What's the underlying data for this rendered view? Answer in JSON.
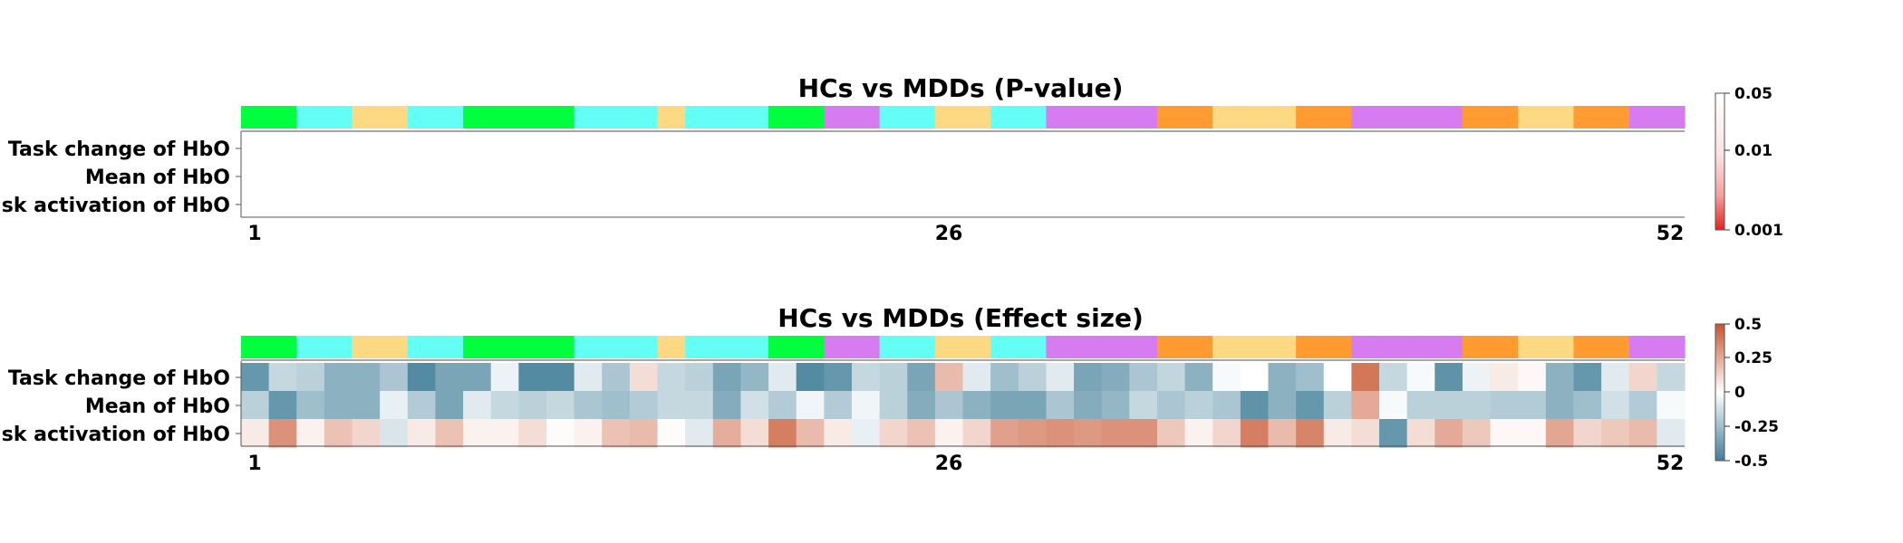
{
  "colors": {
    "green": "#00ff3c",
    "cyan": "#63fff5",
    "yellow": "#fed983",
    "purple": "#d67bf0",
    "orange": "#ff9b30",
    "diverging_low": "#3f7e98",
    "diverging_mid": "#ffffff",
    "diverging_high": "#c8552f",
    "pvalue_low": "#e8201c",
    "pvalue_high": "#ffffff"
  },
  "chart_data": [
    {
      "type": "heatmap",
      "title": "HCs vs MDDs (P-value)",
      "rows": [
        "Task change of HbO",
        "Mean of HbO",
        "Task activation of HbO"
      ],
      "x_ticks": [
        "1",
        "26",
        "52"
      ],
      "region_bar": [
        "green",
        "green",
        "cyan",
        "cyan",
        "yellow",
        "yellow",
        "cyan",
        "cyan",
        "green",
        "green",
        "green",
        "green",
        "cyan",
        "cyan",
        "cyan",
        "yellow",
        "cyan",
        "cyan",
        "cyan",
        "green",
        "green",
        "purple",
        "purple",
        "cyan",
        "cyan",
        "yellow",
        "yellow",
        "cyan",
        "cyan",
        "purple",
        "purple",
        "purple",
        "purple",
        "orange",
        "orange",
        "yellow",
        "yellow",
        "yellow",
        "orange",
        "orange",
        "purple",
        "purple",
        "purple",
        "purple",
        "orange",
        "orange",
        "yellow",
        "yellow",
        "orange",
        "orange",
        "purple",
        "purple"
      ],
      "colorbar": {
        "ticks": [
          "0.05",
          "0.01",
          "0.001"
        ],
        "scale": "log",
        "range": [
          0.001,
          0.05
        ]
      },
      "values": [],
      "note_visible": ""
    },
    {
      "type": "heatmap",
      "title": "HCs vs MDDs (Effect size)",
      "rows": [
        "Task change of HbO",
        "Mean of HbO",
        "Task activation of HbO"
      ],
      "x_ticks": [
        "1",
        "26",
        "52"
      ],
      "region_bar": [
        "green",
        "green",
        "cyan",
        "cyan",
        "yellow",
        "yellow",
        "cyan",
        "cyan",
        "green",
        "green",
        "green",
        "green",
        "cyan",
        "cyan",
        "cyan",
        "yellow",
        "cyan",
        "cyan",
        "cyan",
        "green",
        "green",
        "purple",
        "purple",
        "cyan",
        "cyan",
        "yellow",
        "yellow",
        "cyan",
        "cyan",
        "purple",
        "purple",
        "purple",
        "purple",
        "orange",
        "orange",
        "yellow",
        "yellow",
        "yellow",
        "orange",
        "orange",
        "purple",
        "purple",
        "purple",
        "purple",
        "orange",
        "orange",
        "yellow",
        "yellow",
        "orange",
        "orange",
        "purple",
        "purple"
      ],
      "colorbar": {
        "ticks": [
          "0.5",
          "0.25",
          "0",
          "-0.25",
          "-0.5"
        ],
        "range": [
          -0.5,
          0.5
        ]
      },
      "values": [
        [
          -0.4,
          -0.15,
          -0.18,
          -0.3,
          -0.3,
          -0.22,
          -0.45,
          -0.35,
          -0.35,
          -0.05,
          -0.45,
          -0.45,
          -0.08,
          -0.22,
          0.1,
          -0.15,
          -0.18,
          -0.35,
          -0.28,
          -0.08,
          -0.45,
          -0.4,
          -0.15,
          -0.18,
          -0.35,
          0.2,
          -0.08,
          -0.25,
          -0.18,
          -0.08,
          -0.35,
          -0.32,
          -0.22,
          -0.16,
          -0.3,
          -0.02,
          0.0,
          -0.3,
          -0.25,
          0.0,
          0.4,
          -0.15,
          -0.02,
          -0.42,
          -0.05,
          0.06,
          0.02,
          -0.3,
          -0.4,
          -0.08,
          0.12,
          -0.15
        ],
        [
          -0.18,
          -0.4,
          -0.25,
          -0.3,
          -0.3,
          -0.06,
          -0.2,
          -0.35,
          -0.08,
          -0.15,
          -0.18,
          -0.15,
          -0.22,
          -0.25,
          -0.2,
          -0.15,
          -0.15,
          -0.32,
          -0.12,
          -0.2,
          -0.04,
          -0.2,
          -0.04,
          -0.18,
          -0.32,
          -0.22,
          -0.3,
          -0.35,
          -0.35,
          -0.22,
          -0.32,
          -0.28,
          -0.15,
          -0.22,
          -0.18,
          -0.22,
          -0.42,
          -0.3,
          -0.4,
          -0.18,
          0.25,
          -0.02,
          -0.18,
          -0.18,
          -0.18,
          -0.2,
          -0.2,
          -0.3,
          -0.25,
          -0.12,
          -0.2,
          -0.02
        ],
        [
          0.06,
          0.32,
          0.04,
          0.18,
          0.12,
          -0.1,
          0.06,
          0.18,
          0.04,
          0.04,
          0.1,
          0.01,
          0.04,
          0.18,
          0.2,
          0.01,
          -0.08,
          0.24,
          0.1,
          0.38,
          0.2,
          0.06,
          -0.06,
          0.12,
          0.18,
          0.04,
          0.12,
          0.28,
          0.3,
          0.32,
          0.3,
          0.32,
          0.32,
          0.16,
          0.04,
          0.12,
          0.38,
          0.2,
          0.36,
          0.06,
          0.1,
          -0.4,
          0.1,
          0.25,
          0.16,
          0.02,
          0.02,
          0.26,
          0.12,
          0.16,
          0.2,
          -0.08
        ]
      ]
    }
  ]
}
